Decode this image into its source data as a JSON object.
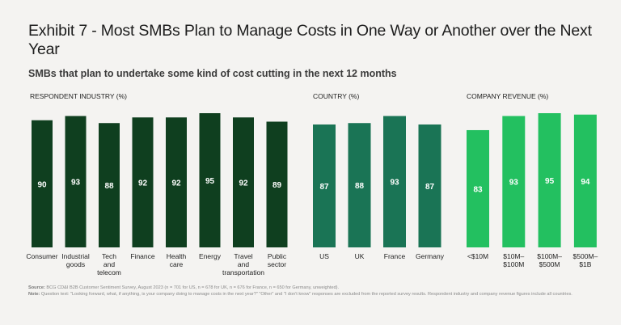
{
  "title": "Exhibit 7 - Most SMBs Plan to Manage Costs in One Way or Another over the Next Year",
  "subtitle": "SMBs that plan to undertake some kind of cost cutting in the next 12 months",
  "footnote": {
    "source_label": "Source:",
    "source_text": "BCG CD&I B2B Customer Sentiment Survey, August 2023 (n = 701 for US, n = 678 for UK, n = 676 for France, n = 650 for Germany, unweighted).",
    "note_label": "Note:",
    "note_text": "Question text: \"Looking forward, what, if anything, is your company doing to manage costs in the next year?\" \"Other\" and \"I don't know\" responses are excluded from the reported survey results. Respondent industry and company revenue figures include all countries."
  },
  "colors": {
    "industry": "#0f3f1f",
    "country": "#1a7455",
    "revenue": "#23c060"
  },
  "chart_data": [
    {
      "type": "bar",
      "title": "RESPONDENT INDUSTRY (%)",
      "categories": [
        [
          "Consumer"
        ],
        [
          "Industrial",
          "goods"
        ],
        [
          "Tech",
          "and",
          "telecom"
        ],
        [
          "Finance"
        ],
        [
          "Health",
          "care"
        ],
        [
          "Energy"
        ],
        [
          "Travel",
          "and",
          "transportation"
        ],
        [
          "Public",
          "sector"
        ]
      ],
      "values": [
        90,
        93,
        88,
        92,
        92,
        95,
        92,
        89
      ],
      "ylabel": "%",
      "ylim": [
        0,
        100
      ],
      "grid": false,
      "data_labels": true
    },
    {
      "type": "bar",
      "title": "COUNTRY (%)",
      "categories": [
        [
          "US"
        ],
        [
          "UK"
        ],
        [
          "France"
        ],
        [
          "Germany"
        ]
      ],
      "values": [
        87,
        88,
        93,
        87
      ],
      "ylabel": "%",
      "ylim": [
        0,
        100
      ],
      "grid": false,
      "data_labels": true
    },
    {
      "type": "bar",
      "title": "COMPANY REVENUE (%)",
      "categories": [
        [
          "<$10M"
        ],
        [
          "$10M–",
          "$100M"
        ],
        [
          "$100M–",
          "$500M"
        ],
        [
          "$500M–",
          "$1B"
        ]
      ],
      "values": [
        83,
        93,
        95,
        94
      ],
      "ylabel": "%",
      "ylim": [
        0,
        100
      ],
      "grid": false,
      "data_labels": true
    }
  ]
}
